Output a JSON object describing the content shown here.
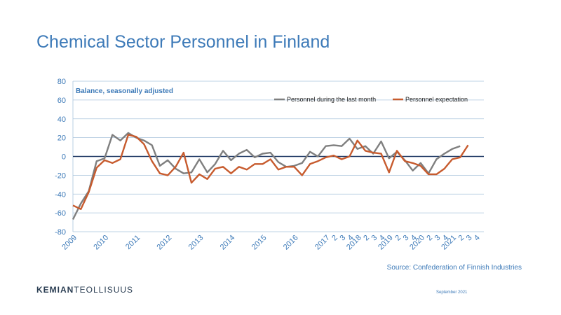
{
  "title": "Chemical Sector Personnel in Finland",
  "source": "Source: Confederation of Finnish Industries",
  "logo": {
    "part1": "KEMIAN",
    "part2": "TEOLLISUUS"
  },
  "date": "September 2021",
  "colors": {
    "series1": "#7f7f7f",
    "series2": "#c75b2e",
    "zero_line": "#1f3864",
    "grid": "#a9c4dc",
    "text": "#3d7ab8"
  },
  "chart_data": {
    "type": "line",
    "annotation": "Balance, seasonally adjusted",
    "ylim": [
      -80,
      80
    ],
    "yticks": [
      80,
      60,
      40,
      20,
      0,
      -20,
      -40,
      -60,
      -80
    ],
    "grid": true,
    "legend_position": "top-right",
    "x_ticks": [
      {
        "label": "2009",
        "t": 0
      },
      {
        "label": "2010",
        "t": 4
      },
      {
        "label": "2011",
        "t": 8
      },
      {
        "label": "2012",
        "t": 12
      },
      {
        "label": "2013",
        "t": 16
      },
      {
        "label": "2014",
        "t": 20
      },
      {
        "label": "2015",
        "t": 24
      },
      {
        "label": "2016",
        "t": 28
      },
      {
        "label": "2017",
        "t": 32
      },
      {
        "label": "2",
        "t": 33
      },
      {
        "label": "3",
        "t": 34
      },
      {
        "label": "4",
        "t": 35
      },
      {
        "label": "2018",
        "t": 36
      },
      {
        "label": "2",
        "t": 37
      },
      {
        "label": "3",
        "t": 38
      },
      {
        "label": "4",
        "t": 39
      },
      {
        "label": "2019",
        "t": 40
      },
      {
        "label": "2",
        "t": 41
      },
      {
        "label": "3",
        "t": 42
      },
      {
        "label": "4",
        "t": 43
      },
      {
        "label": "2020",
        "t": 44
      },
      {
        "label": "2",
        "t": 45
      },
      {
        "label": "3",
        "t": 46
      },
      {
        "label": "4",
        "t": 47
      },
      {
        "label": "2021",
        "t": 48
      },
      {
        "label": "2",
        "t": 49
      },
      {
        "label": "3",
        "t": 50
      },
      {
        "label": "4",
        "t": 51
      }
    ],
    "series": [
      {
        "name": "Personnel during the last month",
        "color": "#7f7f7f",
        "start": 0,
        "values": [
          -67,
          -50,
          -37,
          -5,
          -2,
          23,
          17,
          25,
          20,
          17,
          12,
          -10,
          -4,
          -13,
          -18,
          -17,
          -3,
          -17,
          -8,
          6,
          -4,
          3,
          7,
          -1,
          3,
          4,
          -6,
          -11,
          -10,
          -7,
          5,
          0,
          11,
          12,
          11,
          19,
          8,
          11,
          3,
          16,
          -2,
          5,
          -4,
          -15,
          -7,
          -18,
          -3,
          3,
          8,
          11
        ]
      },
      {
        "name": "Personnel expectation",
        "color": "#c75b2e",
        "start": 0,
        "values": [
          -52,
          -56,
          -38,
          -12,
          -4,
          -7,
          -3,
          23,
          21,
          13,
          -5,
          -18,
          -20,
          -11,
          4,
          -28,
          -19,
          -24,
          -13,
          -11,
          -18,
          -11,
          -14,
          -8,
          -8,
          -3,
          -14,
          -11,
          -11,
          -20,
          -8,
          -5,
          -1,
          1,
          -3,
          0,
          17,
          6,
          4,
          3,
          -17,
          6,
          -5,
          -7,
          -10,
          -19,
          -19,
          -13,
          -3,
          -1,
          12
        ]
      }
    ]
  }
}
